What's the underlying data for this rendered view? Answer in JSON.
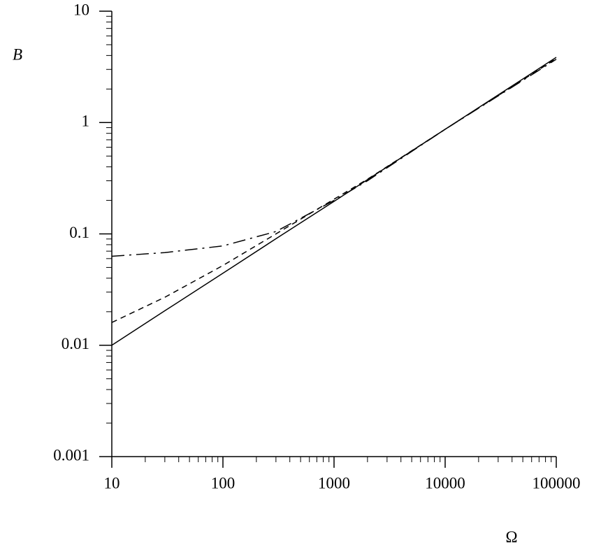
{
  "chart_data": {
    "type": "line",
    "x_label": "Ω",
    "y_label": "B",
    "x": [
      10,
      30,
      100,
      300,
      1000,
      2000,
      10000,
      100000
    ],
    "series": [
      {
        "color": "#000000",
        "style": "solid",
        "values": [
          0.01,
          0.0204,
          0.0443,
          0.0905,
          0.196,
          0.307,
          0.87,
          3.85
        ]
      },
      {
        "color": "#000000",
        "style": "dashed",
        "values": [
          0.016,
          0.027,
          0.052,
          0.1,
          0.205,
          0.31,
          0.87,
          3.75
        ]
      },
      {
        "color": "#000000",
        "style": "dashdot",
        "values": [
          0.063,
          0.068,
          0.078,
          0.105,
          0.2,
          0.3,
          0.87,
          3.7
        ]
      }
    ],
    "xlim": [
      10,
      100000
    ],
    "ylim": [
      0.001,
      10
    ],
    "xticks": [
      10,
      100,
      1000,
      10000,
      100000
    ],
    "yticks": [
      0.001,
      0.01,
      0.1,
      1,
      10
    ],
    "xlog": true,
    "ylog": true,
    "grid": false
  }
}
